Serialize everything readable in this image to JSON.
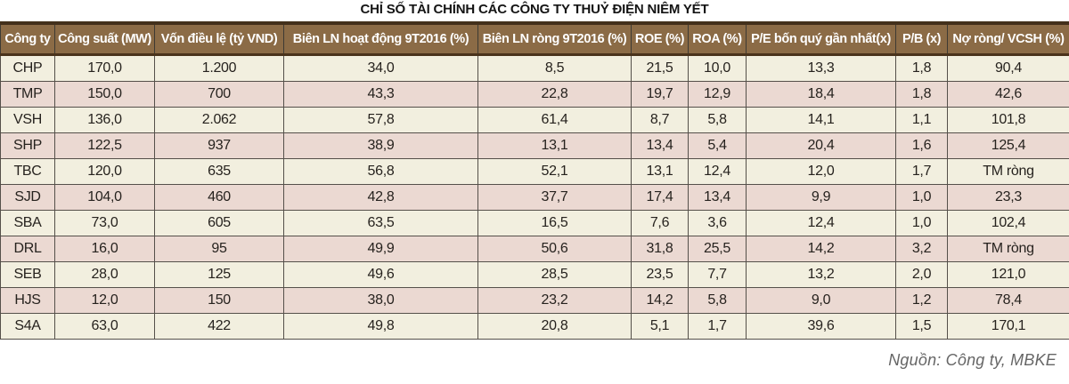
{
  "title": "CHỈ SỐ TÀI CHÍNH CÁC CÔNG TY THUỶ ĐIỆN NIÊM YẾT",
  "source_note": "Nguồn: Công ty, MBKE",
  "colors": {
    "header_bg": "#8b6b46",
    "header_text": "#ffffff",
    "row_light": "#f2efdf",
    "row_alt": "#ebd9d2",
    "grid_line": "#55504a",
    "top_rule": "#43301b",
    "title_text": "#141414",
    "source_text": "#666666"
  },
  "chart_data": {
    "type": "table",
    "title": "CHỈ SỐ TÀI CHÍNH CÁC CÔNG TY THUỶ ĐIỆN NIÊM YẾT",
    "source": "Nguồn: Công ty, MBKE",
    "columns": [
      "Công ty",
      "Công suất (MW)",
      "Vốn điều lệ (tỷ VND)",
      "Biên LN hoạt động 9T2016 (%)",
      "Biên LN ròng 9T2016 (%)",
      "ROE (%)",
      "ROA (%)",
      "P/E bốn quý gần nhất(x)",
      "P/B (x)",
      "Nợ ròng/ VCSH (%)"
    ],
    "rows": [
      [
        "CHP",
        "170,0",
        "1.200",
        "34,0",
        "8,5",
        "21,5",
        "10,0",
        "13,3",
        "1,8",
        "90,4"
      ],
      [
        "TMP",
        "150,0",
        "700",
        "43,3",
        "22,8",
        "19,7",
        "12,9",
        "18,4",
        "1,8",
        "42,6"
      ],
      [
        "VSH",
        "136,0",
        "2.062",
        "57,8",
        "61,4",
        "8,7",
        "5,8",
        "14,1",
        "1,1",
        "101,8"
      ],
      [
        "SHP",
        "122,5",
        "937",
        "38,9",
        "13,1",
        "13,4",
        "5,4",
        "20,4",
        "1,6",
        "125,4"
      ],
      [
        "TBC",
        "120,0",
        "635",
        "56,8",
        "52,1",
        "13,1",
        "12,4",
        "12,0",
        "1,7",
        "TM ròng"
      ],
      [
        "SJD",
        "104,0",
        "460",
        "42,8",
        "37,7",
        "17,4",
        "13,4",
        "9,9",
        "1,0",
        "23,3"
      ],
      [
        "SBA",
        "73,0",
        "605",
        "63,5",
        "16,5",
        "7,6",
        "3,6",
        "12,4",
        "1,0",
        "102,4"
      ],
      [
        "DRL",
        "16,0",
        "95",
        "49,9",
        "50,6",
        "31,8",
        "25,5",
        "14,2",
        "3,2",
        "TM ròng"
      ],
      [
        "SEB",
        "28,0",
        "125",
        "49,6",
        "28,5",
        "23,5",
        "7,7",
        "13,2",
        "2,0",
        "121,0"
      ],
      [
        "HJS",
        "12,0",
        "150",
        "38,0",
        "23,2",
        "14,2",
        "5,8",
        "9,0",
        "1,2",
        "78,4"
      ],
      [
        "S4A",
        "63,0",
        "422",
        "49,8",
        "20,8",
        "5,1",
        "1,7",
        "39,6",
        "1,5",
        "170,1"
      ]
    ]
  }
}
